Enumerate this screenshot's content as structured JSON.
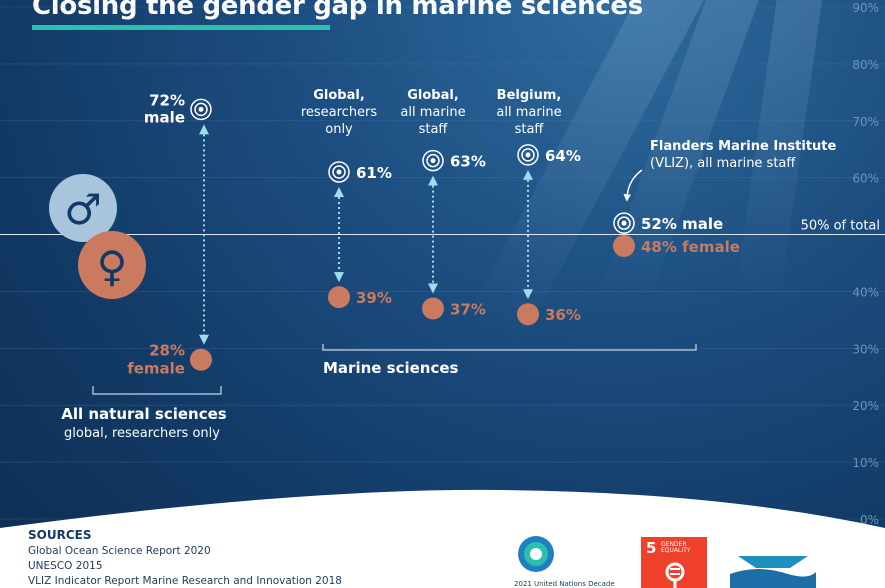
{
  "title": "Closing the gender gap in marine sciences",
  "chart_data": {
    "type": "dot-range",
    "title": "Closing the gender gap in marine sciences",
    "y_ticks": [
      "90%",
      "80%",
      "70%",
      "60%",
      "40%",
      "30%",
      "20%",
      "10%",
      "0%"
    ],
    "y_tick_values": [
      90,
      80,
      70,
      60,
      40,
      30,
      20,
      10,
      0
    ],
    "ylim": [
      0,
      90
    ],
    "reference_line": {
      "value": 50,
      "label": "50% of total"
    },
    "colors": {
      "male": "#ffffff",
      "female": "#c97a5f",
      "accent": "#2bbfae",
      "background": "#123a66"
    },
    "groups": [
      {
        "label_bold": "All natural sciences",
        "label_sub": "global, researchers only",
        "points": [
          {
            "category": "All natural sciences, global, researchers only",
            "male": 72,
            "female": 28,
            "male_label_value": "72%",
            "male_label_word": "male",
            "female_label_value": "28%",
            "female_label_word": "female"
          }
        ]
      },
      {
        "label_bold": "Marine sciences",
        "points": [
          {
            "category_bold": "Global,",
            "category_sub1": "researchers",
            "category_sub2": "only",
            "male": 61,
            "female": 39,
            "male_label": "61%",
            "female_label": "39%"
          },
          {
            "category_bold": "Global,",
            "category_sub1": "all marine",
            "category_sub2": "staff",
            "male": 63,
            "female": 37,
            "male_label": "63%",
            "female_label": "37%"
          },
          {
            "category_bold": "Belgium,",
            "category_sub1": "all marine",
            "category_sub2": "staff",
            "male": 64,
            "female": 36,
            "male_label": "64%",
            "female_label": "36%"
          },
          {
            "category_bold": "Flanders Marine Institute",
            "category_sub1": "(VLIZ), all marine staff",
            "male": 52,
            "female": 48,
            "male_label": "52% male",
            "female_label": "48% female"
          }
        ]
      }
    ],
    "symbols": {
      "male": "♂",
      "female": "♀"
    }
  },
  "sources": {
    "title": "SOURCES",
    "items": [
      "Global Ocean Science Report 2020",
      "UNESCO 2015",
      "VLIZ Indicator Report Marine Research and Innovation 2018"
    ]
  },
  "logos": {
    "decade_text": "2021 United Nations Decade",
    "sdg5_number": "5",
    "sdg5_label": "GENDER EQUALITY"
  }
}
